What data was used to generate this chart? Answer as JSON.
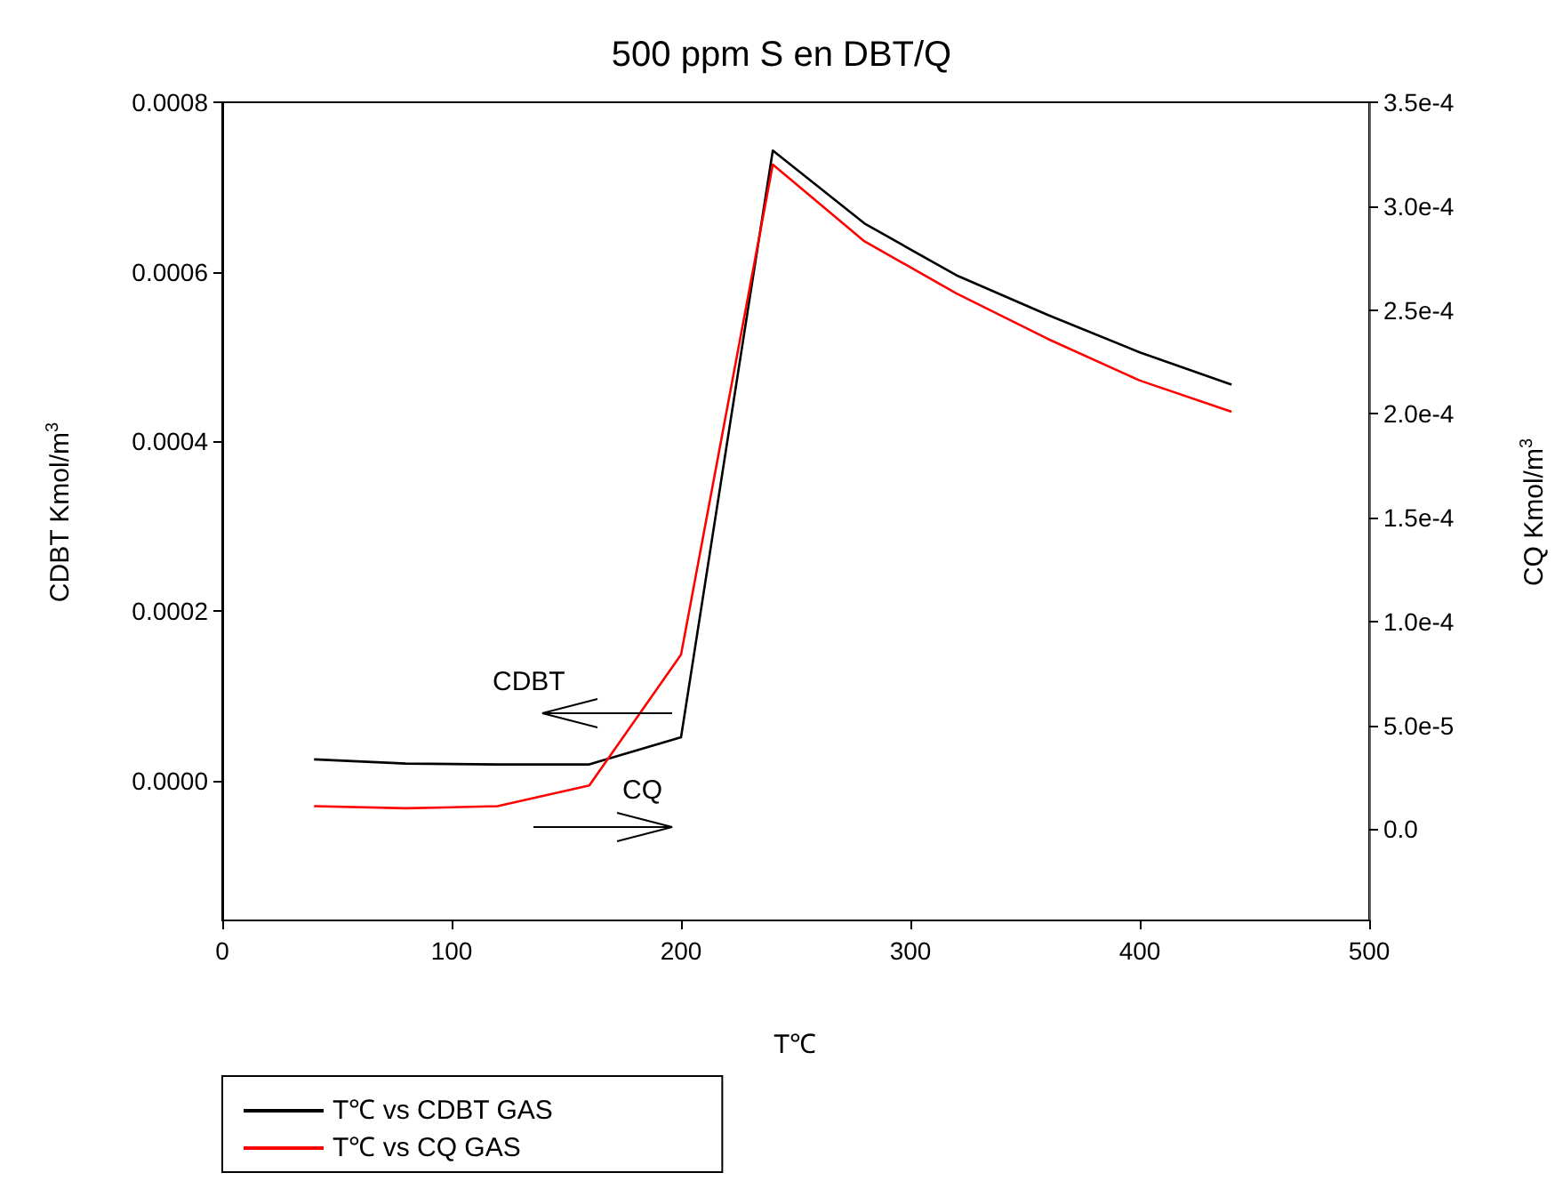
{
  "chart_data": {
    "type": "line",
    "title": "500 ppm S en DBT/Q",
    "xlabel": "T℃",
    "ylabel": "CDBT Kmol/m$^{3}$",
    "y2label": "CQ Kmol/m$^{3}$",
    "x": [
      40,
      80,
      120,
      160,
      200,
      240,
      280,
      320,
      360,
      400,
      440
    ],
    "series": [
      {
        "name": "T℃ vs CDBT GAS",
        "color": "#000000",
        "values": [
          2.5e-05,
          2e-05,
          1.9e-05,
          1.9e-05,
          5.1e-05,
          0.000743,
          0.000657,
          0.000596,
          0.000549,
          0.000505,
          0.000467
        ]
      },
      {
        "name": "T℃ vs CQ GAS",
        "color": "#ff0000",
        "axis": "y2",
        "values": [
          1.1e-05,
          1e-05,
          1.1e-05,
          2.1e-05,
          8.4e-05,
          0.00032,
          0.000283,
          0.000258,
          0.000236,
          0.000216,
          0.000201
        ]
      }
    ],
    "xlim": [
      0,
      500
    ],
    "xticks": [
      0,
      100,
      200,
      300,
      400,
      500
    ],
    "ylim": [
      -0.000165,
      0.0008
    ],
    "yticks": [
      {
        "value": 0,
        "label": "0.0000"
      },
      0.0002,
      0.0004,
      0.0006,
      0.0008
    ],
    "y2lim": [
      -4.4e-05,
      0.00035
    ],
    "y2ticks": [
      {
        "value": 0,
        "label": "0.0"
      },
      {
        "value": 5e-05,
        "label": "5.0e-5"
      },
      {
        "value": 0.0001,
        "label": "1.0e-4"
      },
      {
        "value": 0.00015,
        "label": "1.5e-4"
      },
      {
        "value": 0.0002,
        "label": "2.0e-4"
      },
      {
        "value": 0.00025,
        "label": "2.5e-4"
      },
      {
        "value": 0.0003,
        "label": "3.0e-4"
      },
      {
        "value": 0.00035,
        "label": "3.5e-4"
      }
    ],
    "annotations": [
      "CDBT",
      "CQ"
    ],
    "legend": "bottom left",
    "grid": false,
    "marker": "none",
    "line_style": "solid"
  }
}
